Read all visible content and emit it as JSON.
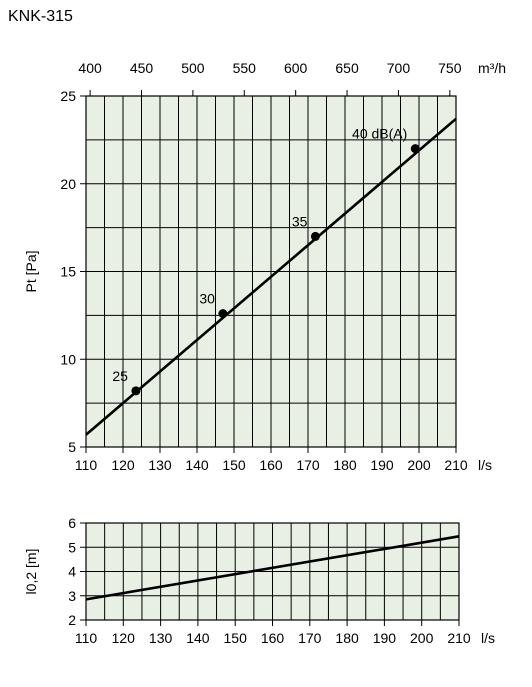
{
  "page": {
    "title": "KNK-315"
  },
  "chart_data": [
    {
      "type": "line",
      "title": "",
      "xlabel": "l/s",
      "x2label": "m³/h",
      "ylabel": "Pt [Pa]",
      "xlim": [
        110,
        210
      ],
      "ylim": [
        5,
        25
      ],
      "x_ticks": [
        110,
        120,
        130,
        140,
        150,
        160,
        170,
        180,
        190,
        200,
        210
      ],
      "x_minor_step": 5,
      "y_ticks": [
        5,
        10,
        15,
        20,
        25
      ],
      "y_minor_step": 2.5,
      "x2_ticks": [
        400,
        450,
        500,
        550,
        600,
        650,
        700,
        750
      ],
      "x2_per_x": 3.6,
      "series": [
        {
          "x": [
            110,
            210
          ],
          "y": [
            5.7,
            23.7
          ]
        }
      ],
      "points": [
        {
          "x": 123.5,
          "y": 8.2,
          "label": "25"
        },
        {
          "x": 147,
          "y": 12.6,
          "label": "30"
        },
        {
          "x": 172,
          "y": 17.0,
          "label": "35"
        },
        {
          "x": 199,
          "y": 22.0,
          "label": "40 dB(A)"
        }
      ],
      "grid": true,
      "colors": {
        "background": "#e8f0e4",
        "line": "#000000",
        "grid": "#000000"
      }
    },
    {
      "type": "line",
      "title": "",
      "xlabel": "l/s",
      "ylabel": "l0,2 [m]",
      "xlim": [
        110,
        210
      ],
      "ylim": [
        2,
        6
      ],
      "x_ticks": [
        110,
        120,
        130,
        140,
        150,
        160,
        170,
        180,
        190,
        200,
        210
      ],
      "x_minor_step": 5,
      "y_ticks": [
        2,
        3,
        4,
        5,
        6
      ],
      "series": [
        {
          "x": [
            110,
            210
          ],
          "y": [
            2.85,
            5.45
          ]
        }
      ],
      "grid": true,
      "colors": {
        "background": "#e8f0e4",
        "line": "#000000",
        "grid": "#000000"
      }
    }
  ]
}
